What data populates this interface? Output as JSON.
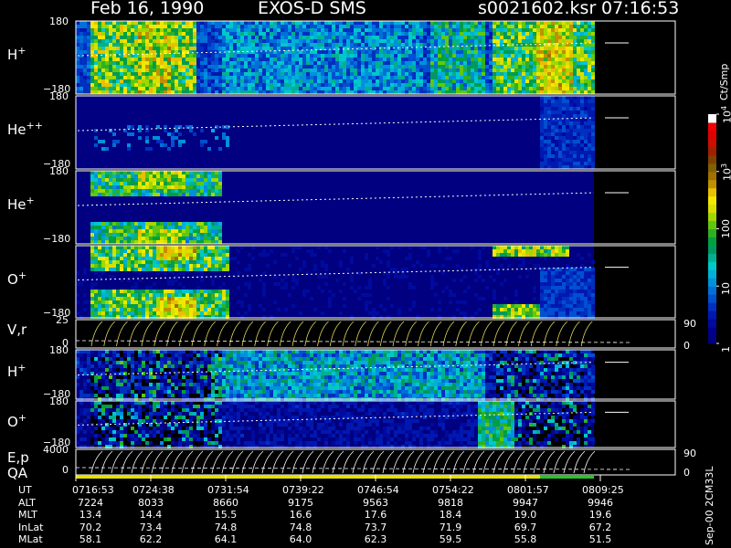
{
  "title": {
    "date": "Feb 16, 1990",
    "instrument": "EXOS-D SMS",
    "file": "s0021602.ksr",
    "time": "07:16:53"
  },
  "panels": [
    {
      "id": "h_plus_top",
      "label_base": "H",
      "label_sup": "+",
      "y_top": "180",
      "y_bottom": "−180"
    },
    {
      "id": "he_pp",
      "label_base": "He",
      "label_sup": "++",
      "y_top": "180",
      "y_bottom": "−180"
    },
    {
      "id": "he_plus",
      "label_base": "He",
      "label_sup": "+",
      "y_top": "180",
      "y_bottom": "−180"
    },
    {
      "id": "o_plus_top",
      "label_base": "O",
      "label_sup": "+",
      "y_top": "",
      "y_bottom": "−180"
    },
    {
      "id": "vr",
      "label_base": "V,r",
      "label_sup": "",
      "y_top": "25",
      "y_bottom": "0",
      "right_top": "90",
      "right_bottom": "0"
    },
    {
      "id": "h_plus_bot",
      "label_base": "H",
      "label_sup": "+",
      "y_top": "180",
      "y_bottom": "−180"
    },
    {
      "id": "o_plus_bot",
      "label_base": "O",
      "label_sup": "+",
      "y_top": "180",
      "y_bottom": "−180"
    },
    {
      "id": "ep",
      "label_base": "E,p",
      "label_sup": "",
      "y_top": "4000",
      "y_bottom": "0",
      "right_top": "90",
      "right_bottom": "0"
    }
  ],
  "qa_label": "QA",
  "colorbar": {
    "unit": "Ct/Smp",
    "ticks": [
      {
        "value": 1,
        "base": "1",
        "exp": ""
      },
      {
        "value": 10,
        "base": "10",
        "exp": ""
      },
      {
        "value": 100,
        "base": "100",
        "exp": ""
      },
      {
        "value": 1000,
        "base": "10",
        "exp": "3"
      },
      {
        "value": 10000,
        "base": "10",
        "exp": "4"
      }
    ],
    "colors": [
      "#000080",
      "#00008c",
      "#000a9e",
      "#0018b0",
      "#0030c0",
      "#0050d0",
      "#0070d8",
      "#0090dc",
      "#00b0d8",
      "#00c8c8",
      "#00b090",
      "#009860",
      "#00a040",
      "#30b020",
      "#60c810",
      "#a0d800",
      "#d8e000",
      "#f0e800",
      "#e8c000",
      "#c09000",
      "#a07000",
      "#806000",
      "#804000",
      "#a02000",
      "#c81000",
      "#e00000",
      "#f00000",
      "#ffffff"
    ]
  },
  "chart_data": {
    "type": "heatmap",
    "x_axis": "UT",
    "time_ticks": [
      "0716:53",
      "0724:38",
      "0731:54",
      "0739:22",
      "0746:54",
      "0754:22",
      "0801:57",
      "0809:25"
    ],
    "orbit_table": {
      "rows": [
        {
          "name": "UT",
          "values": [
            "0716:53",
            "0724:38",
            "0731:54",
            "0739:22",
            "0746:54",
            "0754:22",
            "0801:57",
            "0809:25"
          ]
        },
        {
          "name": "ALT",
          "values": [
            "7224",
            "8033",
            "8660",
            "9175",
            "9563",
            "9818",
            "9947",
            "9946"
          ]
        },
        {
          "name": "MLT",
          "values": [
            "13.4",
            "14.4",
            "15.5",
            "16.6",
            "17.6",
            "18.4",
            "19.0",
            "19.6"
          ]
        },
        {
          "name": "InLat",
          "values": [
            "70.2",
            "73.4",
            "74.8",
            "74.8",
            "73.7",
            "71.9",
            "69.7",
            "67.2"
          ]
        },
        {
          "name": "MLat",
          "values": [
            "58.1",
            "62.2",
            "64.1",
            "64.0",
            "62.3",
            "59.5",
            "55.8",
            "51.5"
          ]
        }
      ]
    },
    "colorbar_scale": "log",
    "colorbar_range": [
      1,
      10000
    ]
  },
  "footer": {
    "version": "Sep-00 2CM33L"
  }
}
